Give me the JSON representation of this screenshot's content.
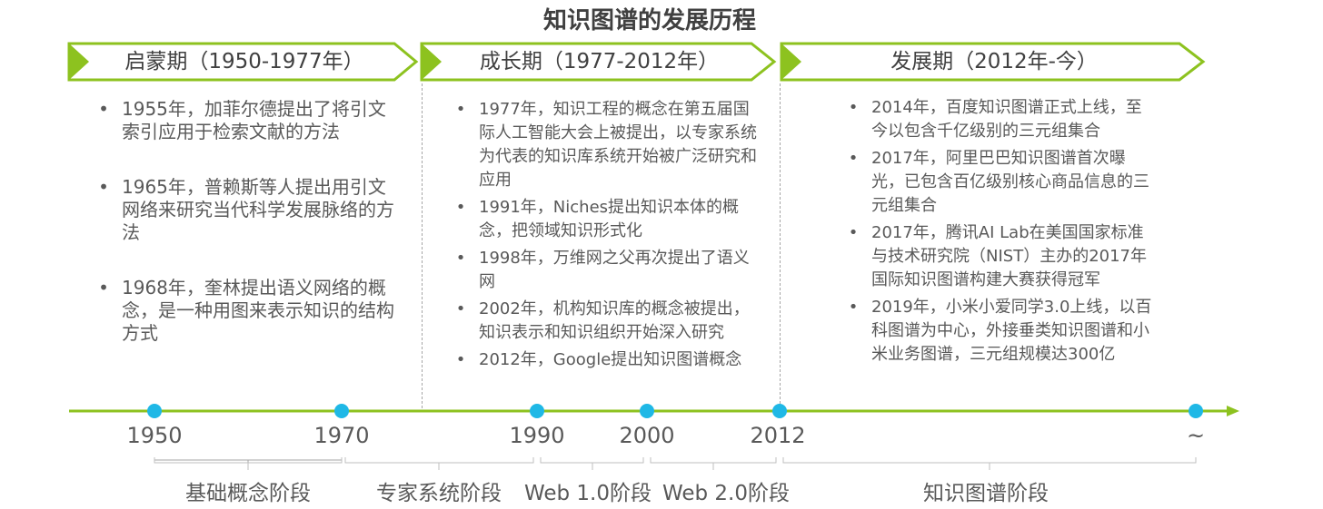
{
  "title": "知识图谱的发展历程",
  "colors": {
    "green": "#8dc21f",
    "dot": "#1fb8e6"
  },
  "phases": [
    {
      "label": "启蒙期（1950-1977年）"
    },
    {
      "label": "成长期（1977-2012年）"
    },
    {
      "label": "发展期（2012年-今）"
    }
  ],
  "columns": [
    {
      "items": [
        "1955年，加菲尔德提出了将引文索引应用于检索文献的方法",
        "1965年，普赖斯等人提出用引文网络来研究当代科学发展脉络的方法",
        "1968年，奎林提出语义网络的概念，是一种用图来表示知识的结构方式"
      ]
    },
    {
      "items": [
        "1977年，知识工程的概念在第五届国际人工智能大会上被提出，以专家系统为代表的知识库系统开始被广泛研究和应用",
        "1991年，Niches提出知识本体的概念，把领域知识形式化",
        "1998年，万维网之父再次提出了语义网",
        "2002年，机构知识库的概念被提出，知识表示和知识组织开始深入研究",
        "2012年，Google提出知识图谱概念"
      ]
    },
    {
      "items": [
        "2014年，百度知识图谱正式上线，至今以包含千亿级别的三元组集合",
        "2017年，阿里巴巴知识图谱首次曝光，已包含百亿级别核心商品信息的三元组集合",
        "2017年，腾讯AI Lab在美国国家标准与技术研究院（NIST）主办的2017年国际知识图谱构建大赛获得冠军",
        "2019年，小米小爱同学3.0上线，以百科图谱为中心，外接垂类知识图谱和小米业务图谱，三元组规模达300亿"
      ]
    }
  ],
  "timeline": {
    "years": [
      "1950",
      "1970",
      "1990",
      "2000",
      "2012",
      "~"
    ],
    "stages": [
      "基础概念阶段",
      "专家系统阶段",
      "Web 1.0阶段",
      "Web 2.0阶段",
      "知识图谱阶段"
    ]
  }
}
